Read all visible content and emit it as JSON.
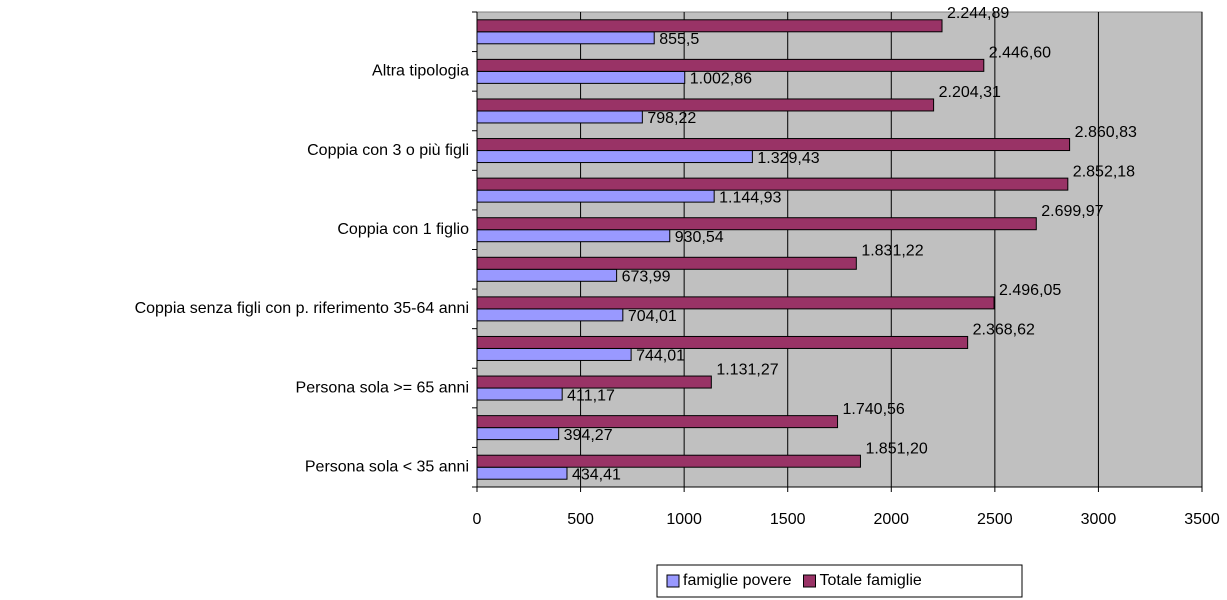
{
  "chart_data": {
    "type": "bar",
    "orientation": "horizontal",
    "categories": [
      "Persona sola < 35 anni",
      null,
      "Persona sola >= 65 anni",
      null,
      "Coppia senza figli con p. riferimento 35-64 anni",
      null,
      "Coppia con 1 figlio",
      null,
      "Coppia con 3 o più figli",
      null,
      "Altra tipologia",
      null
    ],
    "series": [
      {
        "name": "famiglie povere",
        "color": "#9999ff",
        "values": [
          434.41,
          394.27,
          411.17,
          744.01,
          704.01,
          673.99,
          930.54,
          1144.93,
          1329.43,
          798.22,
          1002.86,
          855.5
        ],
        "value_labels": [
          "434,41",
          "394,27",
          "411,17",
          "744,01",
          "704,01",
          "673,99",
          "930,54",
          "1.144,93",
          "1.329,43",
          "798,22",
          "1.002,86",
          "855,5"
        ]
      },
      {
        "name": "Totale famiglie",
        "color": "#993366",
        "values": [
          1851.2,
          1740.56,
          1131.27,
          2368.62,
          2496.05,
          1831.22,
          2699.97,
          2852.18,
          2860.83,
          2204.31,
          2446.6,
          2244.89
        ],
        "value_labels": [
          "1.851,20",
          "1.740,56",
          "1.131,27",
          "2.368,62",
          "2.496,05",
          "1.831,22",
          "2.699,97",
          "2.852,18",
          "2.860,83",
          "2.204,31",
          "2.446,60",
          "2.244,89"
        ]
      }
    ],
    "xlim": [
      0,
      3500
    ],
    "xticks": [
      0,
      500,
      1000,
      1500,
      2000,
      2500,
      3000,
      3500
    ],
    "grid": true,
    "legend": "bottom"
  }
}
